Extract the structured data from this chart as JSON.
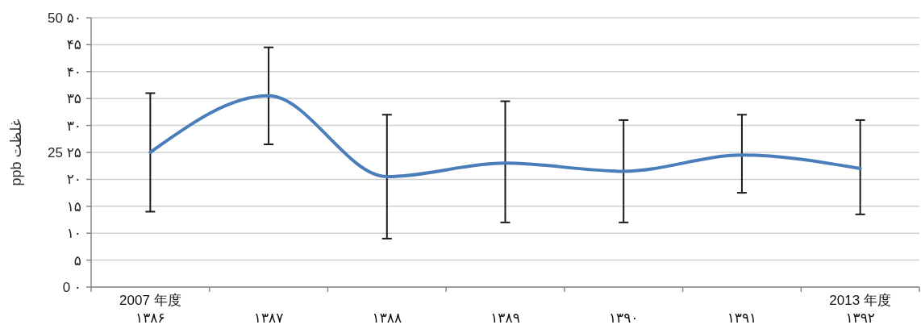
{
  "chart_data": {
    "type": "line",
    "ylabel": "غلظت ppb",
    "categories": [
      "2007 年度\n۱۳۸۶",
      "۱۳۸۷",
      "۱۳۸۸",
      "۱۳۸۹",
      "۱۳۹۰",
      "۱۳۹۱",
      "2013 年度\n۱۳۹۲"
    ],
    "series": [
      {
        "color": "#4a7ebb",
        "values": [
          25,
          35.5,
          20.5,
          23,
          21.5,
          24.5,
          22
        ],
        "errors": [
          [
            14,
            36
          ],
          [
            26.5,
            44.5
          ],
          [
            9,
            32
          ],
          [
            12,
            34.5
          ],
          [
            12,
            31
          ],
          [
            17.5,
            32
          ],
          [
            13.5,
            31
          ]
        ]
      }
    ],
    "ylim": [
      0,
      50
    ],
    "yticks": [
      {
        "value": 0,
        "label": "0 ۰"
      },
      {
        "value": 5,
        "label": "۵"
      },
      {
        "value": 10,
        "label": "۱۰"
      },
      {
        "value": 15,
        "label": "۱۵"
      },
      {
        "value": 20,
        "label": "۲۰"
      },
      {
        "value": 25,
        "label": "25 ۲۵"
      },
      {
        "value": 30,
        "label": "۳۰"
      },
      {
        "value": 35,
        "label": "۳۵"
      },
      {
        "value": 40,
        "label": "۴۰"
      },
      {
        "value": 45,
        "label": "۴۵"
      },
      {
        "value": 50,
        "label": "50 ۵۰"
      }
    ],
    "grid": "y",
    "marker": "none",
    "line_style": "solid"
  }
}
